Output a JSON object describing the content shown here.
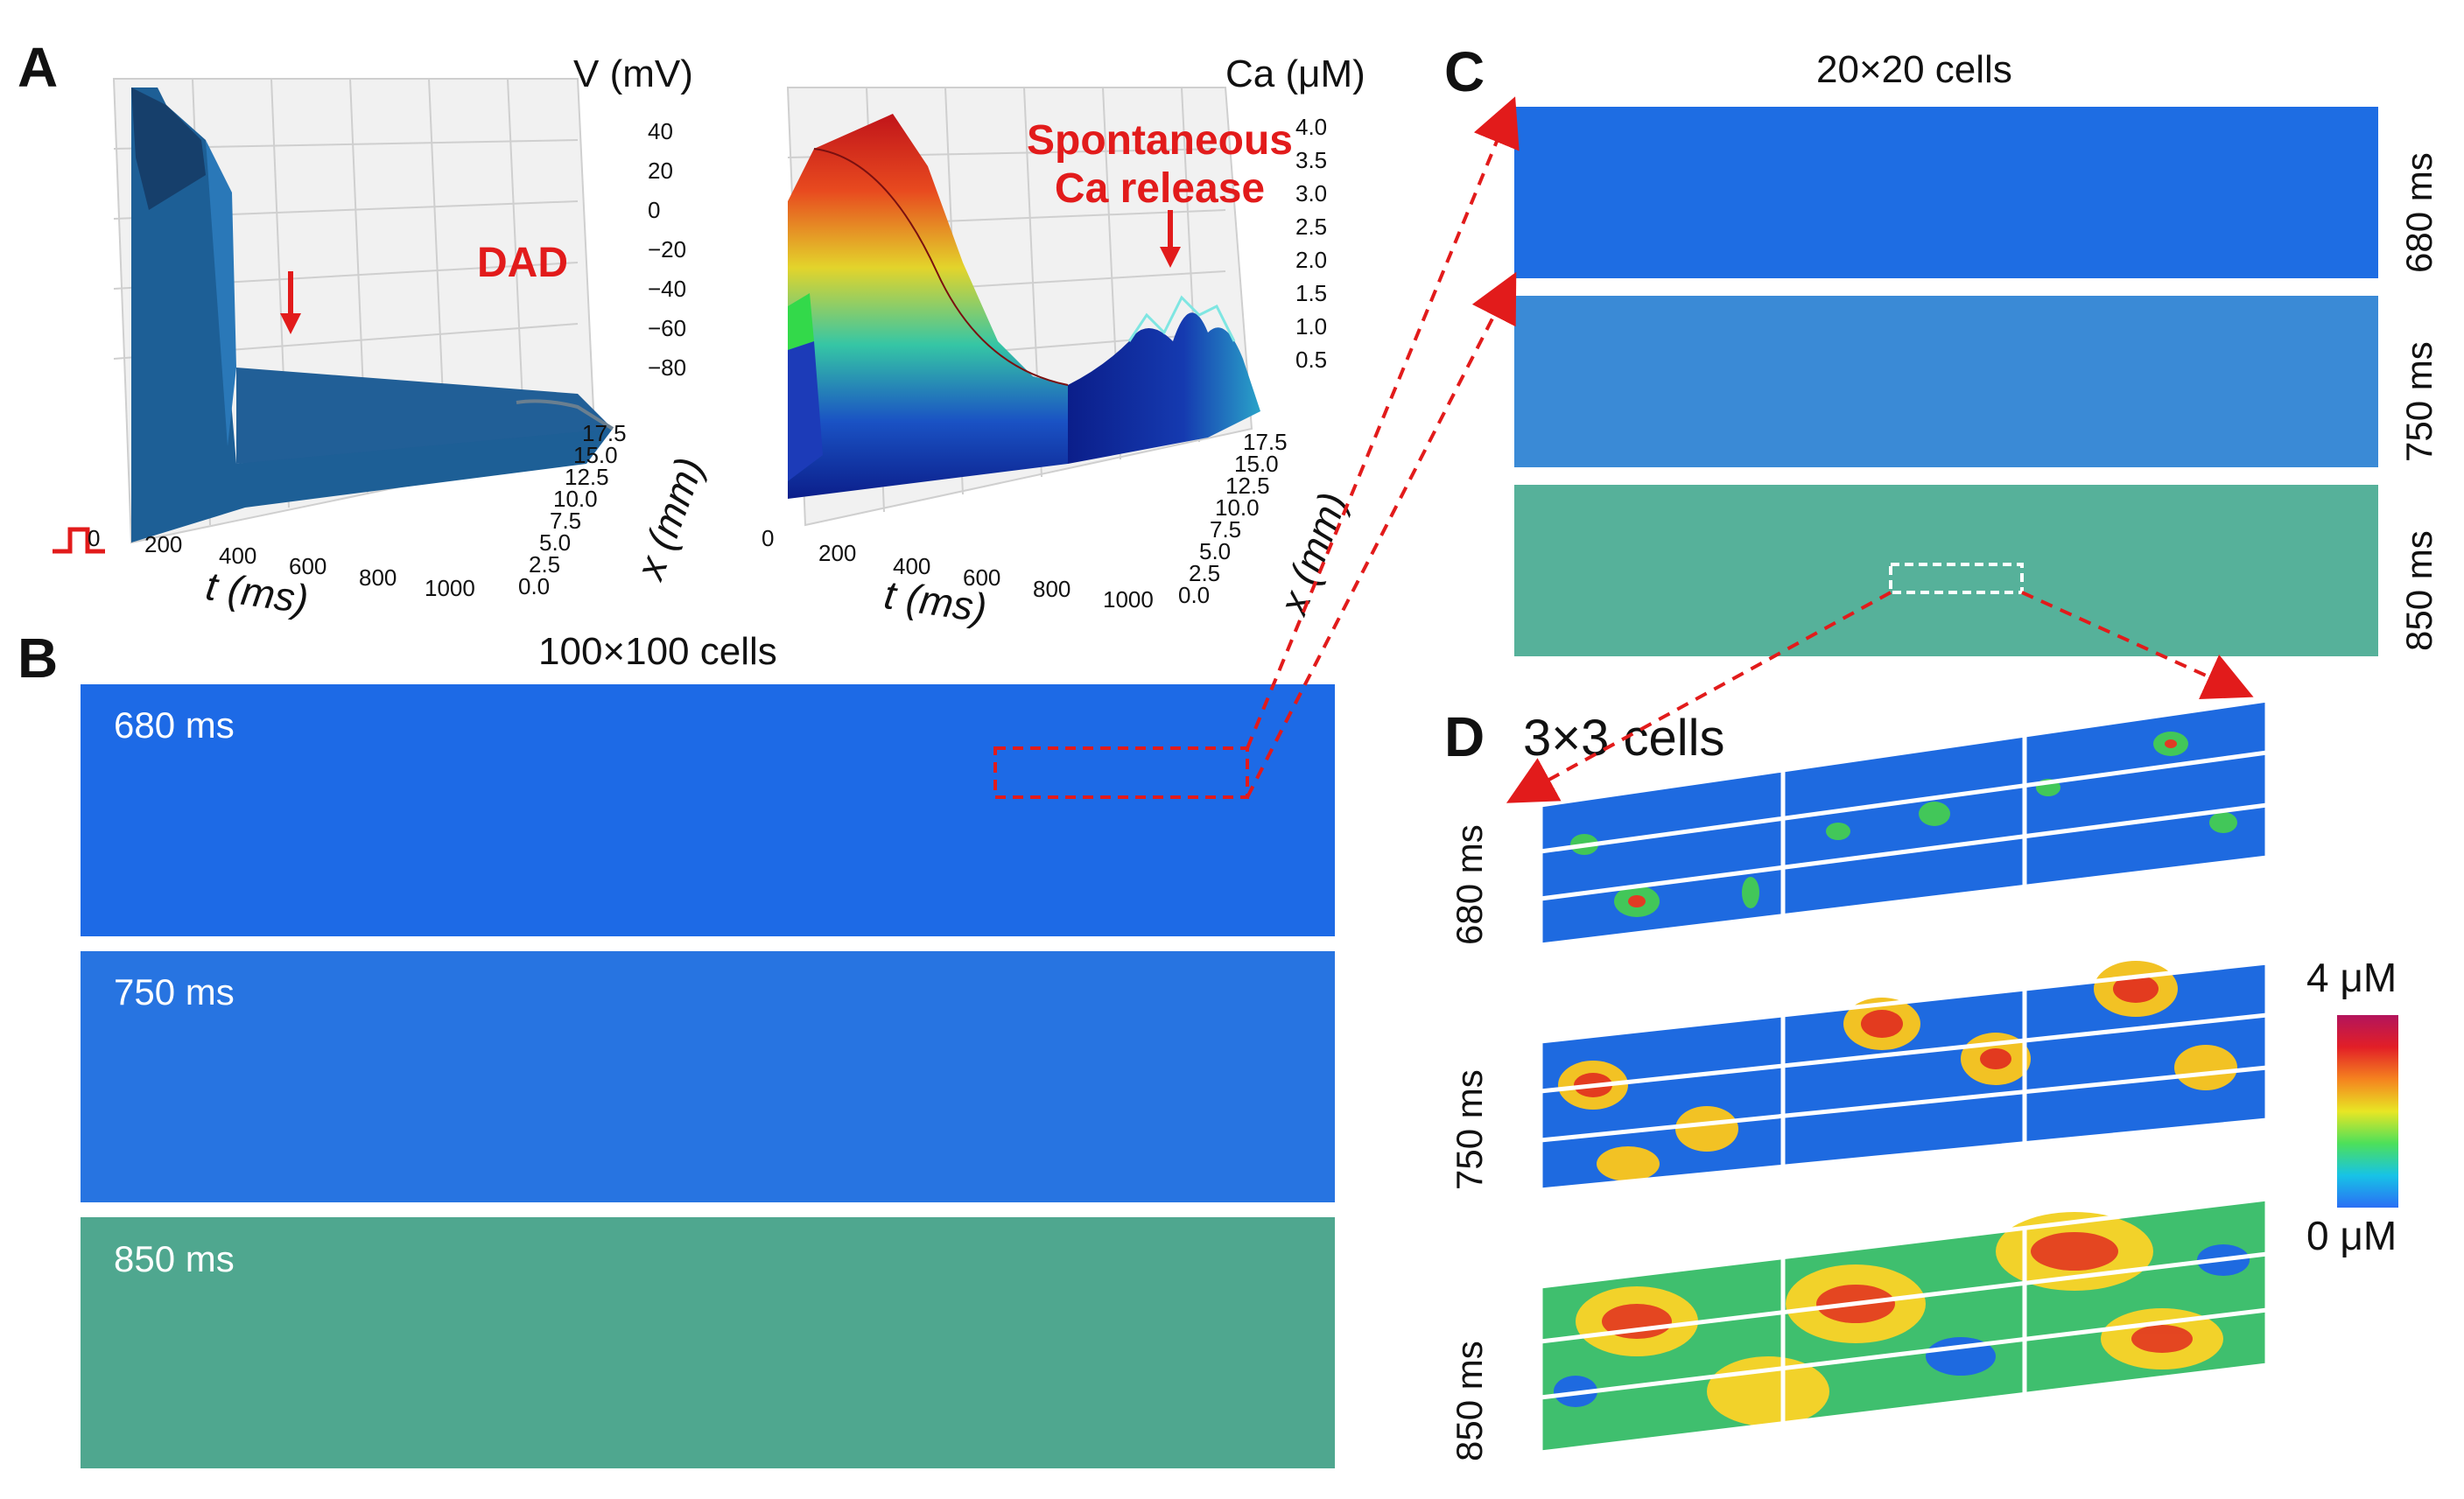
{
  "panels": {
    "A": "A",
    "B": "B",
    "C": "C",
    "D": "D"
  },
  "panelA": {
    "voltage": {
      "title": "V (mV)",
      "z_ticks": [
        "40",
        "20",
        "0",
        "−20",
        "−40",
        "−60",
        "−80"
      ],
      "x_ticks": [
        "0",
        "200",
        "400",
        "600",
        "800",
        "1000"
      ],
      "y_ticks": [
        "17.5",
        "15.0",
        "12.5",
        "10.0",
        "7.5",
        "5.0",
        "2.5",
        "0.0"
      ],
      "xlabel": "t (ms)",
      "ylabel": "x (mm)",
      "annotation": "DAD"
    },
    "calcium": {
      "title": "Ca (μM)",
      "z_ticks": [
        "4.0",
        "3.5",
        "3.0",
        "2.5",
        "2.0",
        "1.5",
        "1.0",
        "0.5"
      ],
      "x_ticks": [
        "0",
        "200",
        "400",
        "600",
        "800",
        "1000"
      ],
      "y_ticks": [
        "17.5",
        "15.0",
        "12.5",
        "10.0",
        "7.5",
        "5.0",
        "2.5",
        "0.0"
      ],
      "xlabel": "t (ms)",
      "ylabel": "x (mm)",
      "annotation_line1": "Spontaneous",
      "annotation_line2": "Ca release"
    }
  },
  "panelB": {
    "title": "100×100 cells",
    "times": [
      "680 ms",
      "750 ms",
      "850 ms"
    ]
  },
  "panelC": {
    "title": "20×20 cells",
    "times": [
      "680 ms",
      "750 ms",
      "850 ms"
    ]
  },
  "panelD": {
    "title": "3×3 cells",
    "times": [
      "680 ms",
      "750 ms",
      "850 ms"
    ],
    "colorbar_max": "4 μM",
    "colorbar_min": "0 μM"
  },
  "colors": {
    "base_blue": "#1f6fe0",
    "accent_red": "#e21b1b",
    "surface_blue": "#1d5f96"
  }
}
